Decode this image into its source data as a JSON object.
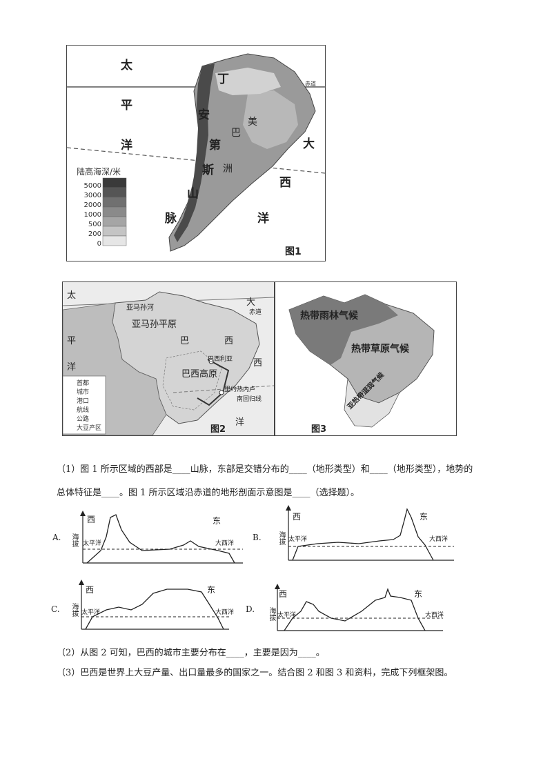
{
  "fig1": {
    "caption": "图1",
    "pacific_chars": [
      "太",
      "平",
      "洋"
    ],
    "andes_chars": [
      "安",
      "第",
      "斯",
      "山",
      "脉"
    ],
    "atlantic_chars": [
      "大",
      "西",
      "洋"
    ],
    "top_char": "丁",
    "region_labels": [
      "巴",
      "美",
      "洲"
    ],
    "equator_label": "赤道",
    "legend": {
      "title": "陆高海深/米",
      "levels": [
        "5000",
        "3000",
        "2000",
        "1000",
        "500",
        "200",
        "0"
      ],
      "colors": [
        "#3a3a3a",
        "#555555",
        "#707070",
        "#8a8a8a",
        "#a5a5a5",
        "#c4c4c4",
        "#e6e6e6"
      ]
    }
  },
  "fig2": {
    "caption": "图2",
    "ocean_left": [
      "太",
      "平",
      "洋"
    ],
    "ocean_right": [
      "大",
      "西",
      "洋"
    ],
    "equator_label": "赤道",
    "amazon_label": "亚马孙平原",
    "amazon_river": "亚马孙河",
    "brazil": [
      "巴",
      "西"
    ],
    "plateau": "巴西高原",
    "capital": "巴西利亚",
    "rio": "里约热内卢",
    "tropic": "南回归线",
    "legend": [
      "首都",
      "城市",
      "港口",
      "航线",
      "公路",
      "大豆产区"
    ]
  },
  "fig3": {
    "caption": "图3",
    "rainforest": "热带雨林气候",
    "savanna": "热带草原气候",
    "subtropical": "亚热带湿润气候"
  },
  "questions": {
    "q1_line1": "（1）图 1 所示区域的西部是____山脉，东部是交错分布的____（地形类型）和____（地形类型），地势的",
    "q1_line2": "总体特征是____。图 1 所示区域沿赤道的地形剖面示意图是____（选择题）。",
    "q2": "（2）从图 2 可知，巴西的城市主要分布在____，主要是因为____。",
    "q3": "（3）巴西是世界上大豆产量、出口量最多的国家之一。结合图 2 和图 3 和资料，完成下列框架图。"
  },
  "options": [
    {
      "letter": "A.",
      "west": "西",
      "east": "东",
      "yaxis": "海拔",
      "pacific": "太平洋",
      "atlantic": "大西洋"
    },
    {
      "letter": "B.",
      "west": "西",
      "east": "东",
      "yaxis": "海拔",
      "pacific": "太平洋",
      "atlantic": "大西洋"
    },
    {
      "letter": "C.",
      "west": "西",
      "east": "东",
      "yaxis": "海拔",
      "pacific": "太平洋",
      "atlantic": "大西洋"
    },
    {
      "letter": "D.",
      "west": "西",
      "east": "东",
      "yaxis": "海拔",
      "pacific": "太平洋",
      "atlantic": "大西洋"
    }
  ]
}
